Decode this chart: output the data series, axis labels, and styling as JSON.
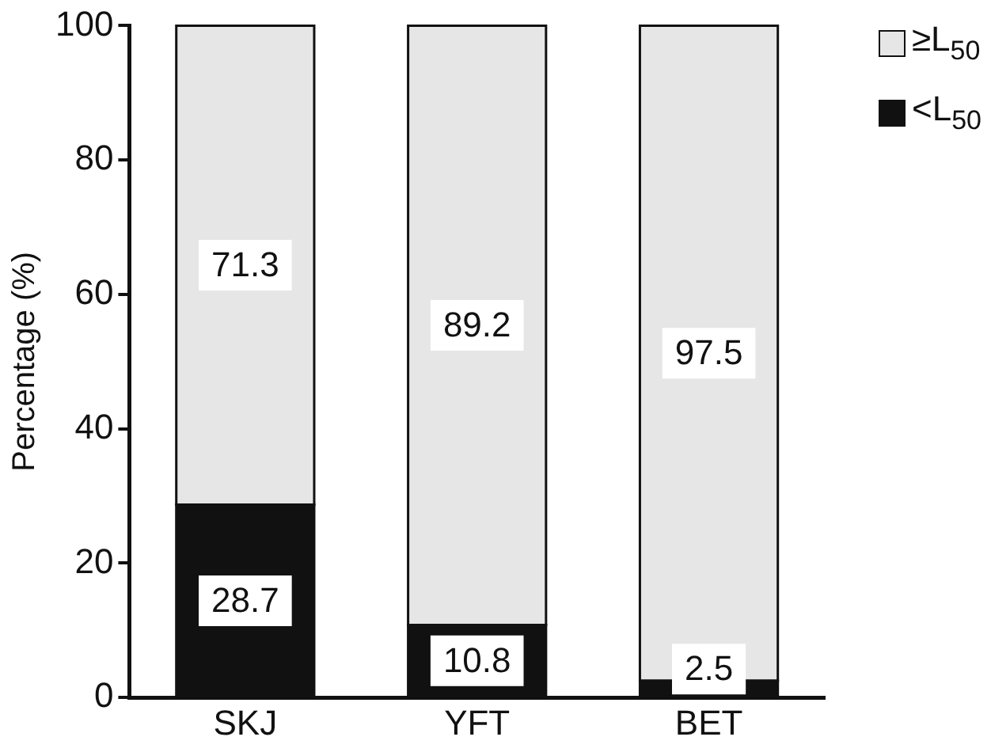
{
  "chart_data": {
    "type": "bar",
    "stacked": true,
    "ylabel": "Percentage (%)",
    "categories": [
      "SKJ",
      "YFT",
      "BET"
    ],
    "series": [
      {
        "name": "<L$_{50}$",
        "color": "#111111",
        "values": [
          28.7,
          10.8,
          2.5
        ]
      },
      {
        "name": "≥L$_{50}$",
        "color": "#e6e6e6",
        "values": [
          71.3,
          89.2,
          97.5
        ]
      }
    ],
    "ylim": [
      0,
      100
    ],
    "yticks": [
      0,
      20,
      40,
      60,
      80,
      100
    ],
    "grid": false,
    "legend": "top right",
    "data_labels": true
  }
}
